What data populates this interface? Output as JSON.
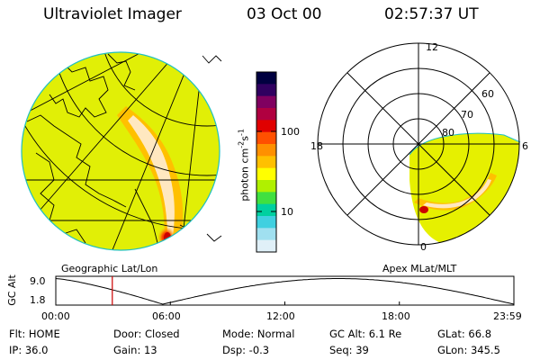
{
  "header": {
    "instrument": "Ultraviolet Imager",
    "date": "03 Oct 00",
    "time": "02:57:37 UT"
  },
  "colorbar": {
    "label": "photon cm",
    "label_exp1": "-2",
    "label_mid": "s",
    "label_exp2": "-1",
    "tick_100": "100",
    "tick_10": "10",
    "colors": [
      "#000040",
      "#300060",
      "#800060",
      "#b00040",
      "#e00000",
      "#ff5000",
      "#ff9000",
      "#ffc000",
      "#ffff00",
      "#b0f000",
      "#40e040",
      "#00d0a0",
      "#40d0e0",
      "#a0e0f0",
      "#e0f0f8"
    ]
  },
  "left_panel": {
    "caption": "Geographic Lat/Lon"
  },
  "right_panel": {
    "caption": "Apex MLat/MLT",
    "mlt_12": "12",
    "mlt_18": "18",
    "mlt_6": "6",
    "mlt_0": "0",
    "lat_60": "60",
    "lat_70": "70",
    "lat_80": "80"
  },
  "altitude_plot": {
    "ylabel": "GC Alt",
    "y_top": "9.0",
    "y_bottom": "1.8",
    "x_ticks": [
      "00:00",
      "06:00",
      "12:00",
      "18:00",
      "23:59"
    ],
    "current_time_hours": 2.96,
    "marker_color": "#cc0000"
  },
  "info": {
    "row1": {
      "flt": "Flt: HOME",
      "door": "Door: Closed",
      "mode": "Mode: Normal",
      "gcalt": "GC Alt: 6.1 Re",
      "glat": "GLat:  66.8"
    },
    "row2": {
      "ip": "IP: 36.0",
      "gain": "Gain: 13",
      "dsp": "Dsp:   -0.3",
      "seq": "Seq: 39",
      "glon": "GLon: 345.5"
    }
  }
}
